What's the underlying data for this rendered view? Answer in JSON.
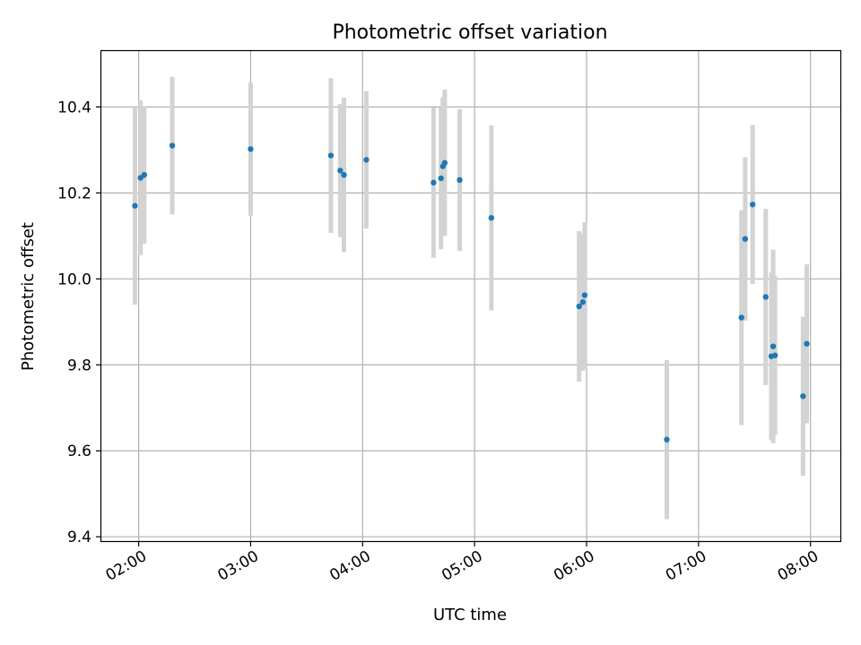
{
  "chart_data": {
    "type": "scatter",
    "title": "Photometric offset variation",
    "xlabel": "UTC time",
    "ylabel": "Photometric offset",
    "x_is_time": true,
    "xlim": [
      "01:40",
      "08:16"
    ],
    "ylim": [
      9.39,
      10.53
    ],
    "grid": true,
    "x_ticks": [
      "02:00",
      "03:00",
      "04:00",
      "05:00",
      "06:00",
      "07:00",
      "08:00"
    ],
    "y_ticks": [
      9.4,
      9.6,
      9.8,
      10.0,
      10.2,
      10.4
    ],
    "y_tick_labels": [
      "9.4",
      "9.6",
      "9.8",
      "10.0",
      "10.2",
      "10.4"
    ],
    "colors": {
      "point": "#1f77b4",
      "errorbar": "#d3d3d3",
      "grid": "#b0b0b0"
    },
    "points": [
      {
        "x": "01:58",
        "y": 10.17,
        "err": 0.23
      },
      {
        "x": "02:01",
        "y": 10.235,
        "err": 0.18
      },
      {
        "x": "02:03",
        "y": 10.242,
        "err": 0.16
      },
      {
        "x": "02:18",
        "y": 10.31,
        "err": 0.16
      },
      {
        "x": "03:00",
        "y": 10.302,
        "err": 0.155
      },
      {
        "x": "03:43",
        "y": 10.287,
        "err": 0.18
      },
      {
        "x": "03:48",
        "y": 10.252,
        "err": 0.155
      },
      {
        "x": "03:50",
        "y": 10.242,
        "err": 0.18
      },
      {
        "x": "04:02",
        "y": 10.277,
        "err": 0.16
      },
      {
        "x": "04:38",
        "y": 10.224,
        "err": 0.175
      },
      {
        "x": "04:42",
        "y": 10.234,
        "err": 0.165
      },
      {
        "x": "04:43",
        "y": 10.262,
        "err": 0.16
      },
      {
        "x": "04:44",
        "y": 10.27,
        "err": 0.17
      },
      {
        "x": "04:52",
        "y": 10.23,
        "err": 0.165
      },
      {
        "x": "05:09",
        "y": 10.142,
        "err": 0.215
      },
      {
        "x": "05:56",
        "y": 9.936,
        "err": 0.175
      },
      {
        "x": "05:58",
        "y": 9.946,
        "err": 0.16
      },
      {
        "x": "05:59",
        "y": 9.962,
        "err": 0.17
      },
      {
        "x": "06:43",
        "y": 9.626,
        "err": 0.185
      },
      {
        "x": "07:23",
        "y": 9.91,
        "err": 0.25
      },
      {
        "x": "07:25",
        "y": 10.093,
        "err": 0.19
      },
      {
        "x": "07:29",
        "y": 10.173,
        "err": 0.185
      },
      {
        "x": "07:36",
        "y": 9.958,
        "err": 0.205
      },
      {
        "x": "07:39",
        "y": 9.82,
        "err": 0.195
      },
      {
        "x": "07:40",
        "y": 9.843,
        "err": 0.225
      },
      {
        "x": "07:41",
        "y": 9.822,
        "err": 0.185
      },
      {
        "x": "07:56",
        "y": 9.727,
        "err": 0.185
      },
      {
        "x": "07:58",
        "y": 9.849,
        "err": 0.185
      }
    ]
  }
}
